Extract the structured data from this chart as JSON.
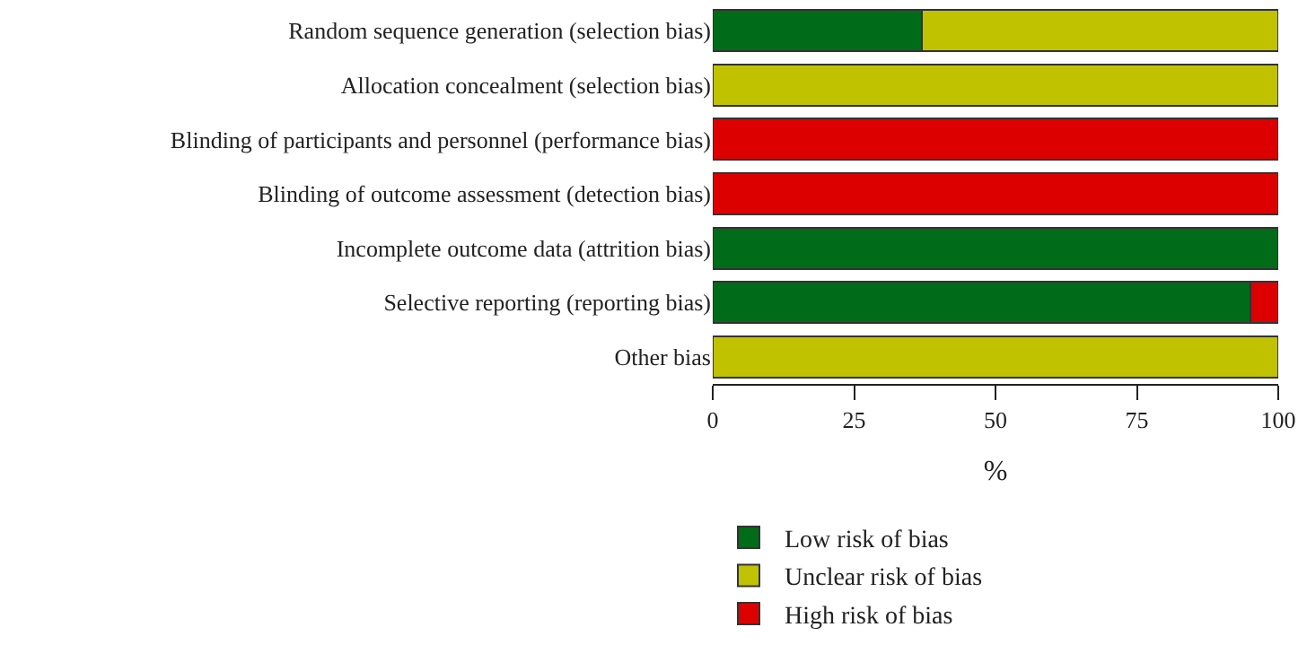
{
  "chart_data": {
    "type": "bar",
    "orientation": "horizontal",
    "stacked": true,
    "xlabel": "%",
    "categories": [
      "Random sequence generation (selection bias)",
      "Allocation concealment (selection bias)",
      "Blinding of participants and personnel (performance bias)",
      "Blinding of outcome assessment (detection bias)",
      "Incomplete outcome data (attrition bias)",
      "Selective reporting (reporting bias)",
      "Other bias"
    ],
    "series": [
      {
        "name": "Low risk of bias",
        "color": "#006b18",
        "values": [
          37,
          0,
          0,
          0,
          100,
          95,
          0
        ]
      },
      {
        "name": "Unclear risk of bias",
        "color": "#c0c200",
        "values": [
          63,
          100,
          0,
          0,
          0,
          0,
          100
        ]
      },
      {
        "name": "High risk of bias",
        "color": "#dc0000",
        "values": [
          0,
          0,
          100,
          100,
          0,
          5,
          0
        ]
      }
    ],
    "xlim": [
      0,
      100
    ],
    "xticks": [
      0,
      25,
      50,
      75,
      100
    ],
    "legend": "bottom"
  }
}
